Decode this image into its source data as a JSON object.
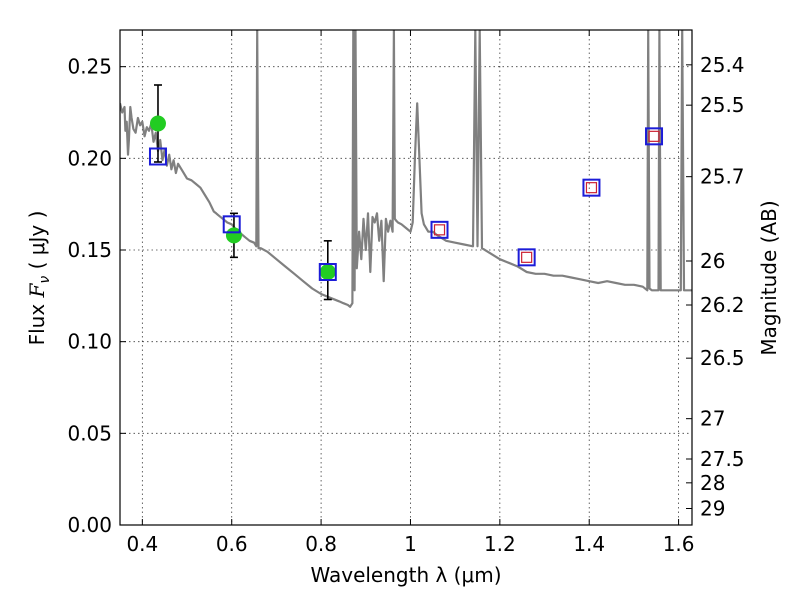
{
  "chart_data": {
    "type": "scatter",
    "xlabel": "Wavelength  λ (μm)",
    "ylabel": "Flux  F_ν  ( μJy )",
    "ylabel_right": "Magnitude (AB)",
    "xlim": [
      0.35,
      1.63
    ],
    "ylim": [
      0.0,
      0.27
    ],
    "grid": true,
    "x_ticks": [
      0.4,
      0.6,
      0.8,
      1.0,
      1.2,
      1.4,
      1.6
    ],
    "x_tick_labels": [
      "0.4",
      "0.6",
      "0.8",
      "1",
      "1.2",
      "1.4",
      "1.6"
    ],
    "y_ticks": [
      0.0,
      0.05,
      0.1,
      0.15,
      0.2,
      0.25
    ],
    "y_tick_labels": [
      "0.00",
      "0.05",
      "0.10",
      "0.15",
      "0.20",
      "0.25"
    ],
    "right_ticks": [
      {
        "label": "25.4",
        "flux": 0.251
      },
      {
        "label": "25.5",
        "flux": 0.229
      },
      {
        "label": "25.7",
        "flux": 0.19
      },
      {
        "label": "26",
        "flux": 0.144
      },
      {
        "label": "26.2",
        "flux": 0.12
      },
      {
        "label": "26.5",
        "flux": 0.091
      },
      {
        "label": "27",
        "flux": 0.058
      },
      {
        "label": "27.5",
        "flux": 0.036
      },
      {
        "label": "28",
        "flux": 0.023
      },
      {
        "label": "29",
        "flux": 0.009
      }
    ],
    "series": [
      {
        "kind": "line",
        "color": "#808080",
        "x": [
          0.35,
          0.355,
          0.36,
          0.362,
          0.365,
          0.368,
          0.37,
          0.373,
          0.376,
          0.38,
          0.385,
          0.39,
          0.395,
          0.4,
          0.405,
          0.41,
          0.415,
          0.42,
          0.425,
          0.43,
          0.435,
          0.44,
          0.445,
          0.45,
          0.455,
          0.46,
          0.465,
          0.47,
          0.475,
          0.48,
          0.49,
          0.5,
          0.51,
          0.52,
          0.53,
          0.54,
          0.55,
          0.56,
          0.565,
          0.57,
          0.58,
          0.59,
          0.6,
          0.61,
          0.62,
          0.63,
          0.64,
          0.65,
          0.655,
          0.657,
          0.66,
          0.665,
          0.68,
          0.7,
          0.72,
          0.74,
          0.76,
          0.78,
          0.8,
          0.82,
          0.84,
          0.85,
          0.86,
          0.865,
          0.87,
          0.872,
          0.875,
          0.877,
          0.88,
          0.885,
          0.89,
          0.895,
          0.9,
          0.905,
          0.91,
          0.915,
          0.92,
          0.925,
          0.93,
          0.935,
          0.94,
          0.945,
          0.95,
          0.955,
          0.96,
          0.963,
          0.965,
          0.968,
          0.972,
          0.98,
          0.99,
          1.0,
          1.005,
          1.01,
          1.015,
          1.02,
          1.025,
          1.03,
          1.04,
          1.05,
          1.06,
          1.08,
          1.1,
          1.12,
          1.14,
          1.145,
          1.15,
          1.155,
          1.16,
          1.18,
          1.2,
          1.22,
          1.24,
          1.26,
          1.28,
          1.3,
          1.32,
          1.34,
          1.36,
          1.38,
          1.4,
          1.42,
          1.44,
          1.46,
          1.48,
          1.5,
          1.52,
          1.53,
          1.532,
          1.535,
          1.54,
          1.555,
          1.557,
          1.56,
          1.57,
          1.58,
          1.6,
          1.605,
          1.608,
          1.612,
          1.62,
          1.63
        ],
        "y": [
          0.23,
          0.225,
          0.228,
          0.215,
          0.22,
          0.202,
          0.21,
          0.228,
          0.222,
          0.216,
          0.214,
          0.222,
          0.218,
          0.22,
          0.212,
          0.217,
          0.215,
          0.219,
          0.209,
          0.214,
          0.204,
          0.21,
          0.199,
          0.205,
          0.196,
          0.202,
          0.194,
          0.199,
          0.192,
          0.197,
          0.193,
          0.189,
          0.188,
          0.186,
          0.184,
          0.18,
          0.176,
          0.171,
          0.17,
          0.169,
          0.167,
          0.165,
          0.164,
          0.161,
          0.159,
          0.157,
          0.155,
          0.154,
          0.152,
          0.27,
          0.151,
          0.151,
          0.149,
          0.145,
          0.141,
          0.137,
          0.133,
          0.129,
          0.126,
          0.124,
          0.122,
          0.121,
          0.12,
          0.119,
          0.121,
          0.27,
          0.128,
          0.27,
          0.14,
          0.16,
          0.145,
          0.167,
          0.15,
          0.17,
          0.138,
          0.168,
          0.165,
          0.17,
          0.155,
          0.166,
          0.133,
          0.167,
          0.16,
          0.166,
          0.16,
          0.27,
          0.167,
          0.166,
          0.165,
          0.164,
          0.162,
          0.16,
          0.165,
          0.2,
          0.23,
          0.2,
          0.17,
          0.164,
          0.16,
          0.16,
          0.158,
          0.155,
          0.154,
          0.153,
          0.152,
          0.27,
          0.152,
          0.27,
          0.151,
          0.148,
          0.145,
          0.143,
          0.141,
          0.138,
          0.137,
          0.137,
          0.136,
          0.136,
          0.135,
          0.134,
          0.133,
          0.132,
          0.133,
          0.132,
          0.131,
          0.131,
          0.13,
          0.128,
          0.27,
          0.129,
          0.128,
          0.128,
          0.27,
          0.128,
          0.128,
          0.128,
          0.128,
          0.128,
          0.27,
          0.128,
          0.128,
          0.128
        ]
      },
      {
        "kind": "scatter",
        "marker": "circle",
        "color": "#22cc22",
        "x": [
          0.435,
          0.605,
          0.815
        ],
        "y": [
          0.219,
          0.158,
          0.138
        ],
        "err": [
          0.021,
          0.012,
          0.016
        ],
        "err_center": [
          0.219,
          0.158,
          0.139
        ]
      },
      {
        "kind": "scatter",
        "marker": "square",
        "color": "#1c1cd8",
        "x": [
          0.435,
          0.6,
          0.815,
          1.065,
          1.26,
          1.405,
          1.545
        ],
        "y": [
          0.201,
          0.164,
          0.138,
          0.161,
          0.146,
          0.184,
          0.212
        ]
      },
      {
        "kind": "scatter",
        "marker": "small-square",
        "color": "#cc2233",
        "x": [
          1.065,
          1.26,
          1.405,
          1.545
        ],
        "y": [
          0.161,
          0.146,
          0.184,
          0.212
        ]
      }
    ]
  }
}
